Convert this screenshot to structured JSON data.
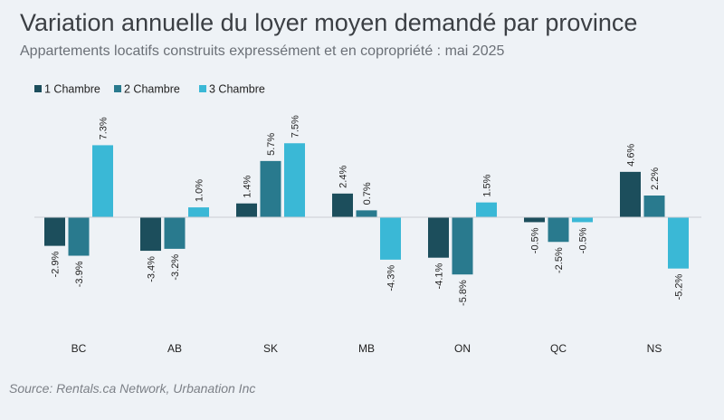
{
  "chart_data": {
    "type": "bar",
    "title": "Variation annuelle du loyer moyen demandé par province",
    "subtitle": "Appartements locatifs construits expressément et en copropriété : mai 2025",
    "source": "Source: Rentals.ca Network, Urbanation Inc",
    "categories": [
      "BC",
      "AB",
      "SK",
      "MB",
      "ON",
      "QC",
      "NS"
    ],
    "series": [
      {
        "name": "1 Chambre",
        "color": "#1c4e5c",
        "values": [
          -2.9,
          -3.4,
          1.4,
          2.4,
          -4.1,
          -0.5,
          4.6
        ]
      },
      {
        "name": "2 Chambre",
        "color": "#297a8e",
        "values": [
          -3.9,
          -3.2,
          5.7,
          0.7,
          -5.8,
          -2.5,
          2.2
        ]
      },
      {
        "name": "3 Chambre",
        "color": "#3ab8d6",
        "values": [
          7.3,
          1.0,
          7.5,
          -4.3,
          1.5,
          -0.5,
          -5.2
        ]
      }
    ],
    "value_format": "percent_one_decimal",
    "ylim": [
      -6,
      8
    ],
    "grid": false,
    "legend_position": "top-left"
  }
}
